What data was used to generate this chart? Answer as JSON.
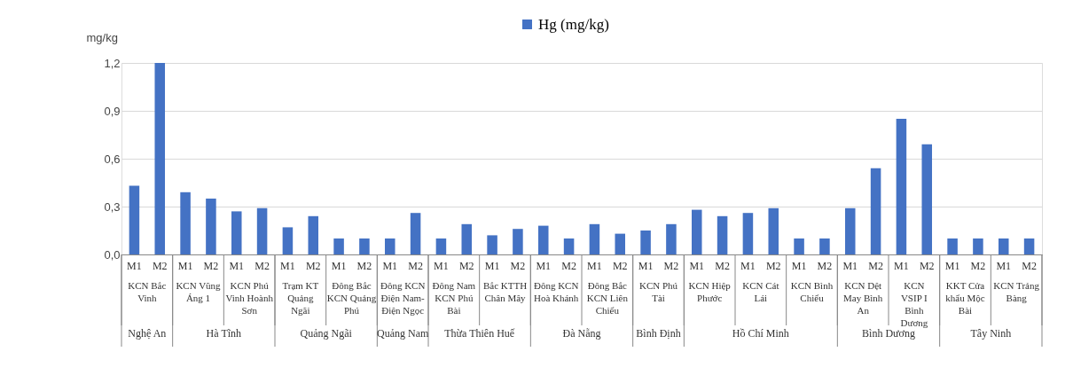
{
  "chart_data": {
    "type": "bar",
    "ylabel": "mg/kg",
    "legend": "top",
    "grid": "y",
    "categories": [
      "M1",
      "M2",
      "M1",
      "M2",
      "M1",
      "M2",
      "M1",
      "M2",
      "M1",
      "M2",
      "M1",
      "M2",
      "M1",
      "M2",
      "M1",
      "M2",
      "M1",
      "M2",
      "M1",
      "M2",
      "M1",
      "M2",
      "M1",
      "M2",
      "M1",
      "M2",
      "M1",
      "M2",
      "M1",
      "M2",
      "M1",
      "M2",
      "M1",
      "M2",
      "M1",
      "M2"
    ],
    "series": [
      {
        "name": "Hg (mg/kg)",
        "color": "#4472c4",
        "values": [
          0.43,
          1.2,
          0.39,
          0.35,
          0.27,
          0.29,
          0.17,
          0.24,
          0.1,
          0.1,
          0.1,
          0.26,
          0.1,
          0.19,
          0.12,
          0.16,
          0.18,
          0.1,
          0.19,
          0.13,
          0.15,
          0.19,
          0.28,
          0.24,
          0.26,
          0.29,
          0.1,
          0.1,
          0.29,
          0.54,
          0.85,
          0.69,
          0.1,
          0.1,
          0.1,
          0.1
        ]
      }
    ],
    "ylim": [
      0,
      1.2
    ],
    "yticks": [
      {
        "value": 0,
        "label": "0,0"
      },
      {
        "value": 0.3,
        "label": "0,3"
      },
      {
        "value": 0.6,
        "label": "0,6"
      },
      {
        "value": 0.9,
        "label": "0,9"
      },
      {
        "value": 1.2,
        "label": "1,2"
      }
    ],
    "annotations": [
      "KCN Bắc Vinh",
      "KCN Vũng Áng 1",
      "KCN Phú Vinh Hoành Sơn",
      "Trạm KT Quảng Ngãi",
      "Đông Bắc KCN Quảng Phú",
      "Đông KCN Điện Nam-Điện Ngọc",
      "Đông Nam KCN Phú Bài",
      "Bắc KTTH Chân Mây",
      "Đông KCN Hoà Khánh",
      "Đông Bắc KCN Liên Chiểu",
      "KCN Phú Tài",
      "KCN Hiệp Phước",
      "KCN Cát Lái",
      "KCN Bình Chiểu",
      "KCN Dệt May Bình An",
      "KCN VSIP I Bình Dương",
      "KKT Cửa khẩu Mộc Bài",
      "KCN Trảng Bàng",
      "Nghệ An",
      "Hà Tĩnh",
      "Quảng Ngãi",
      "Quảng Nam",
      "Thừa Thiên Huế",
      "Đà Nẵng",
      "Bình Định",
      "Hồ Chí Minh",
      "Bình Dương",
      "Tây Ninh"
    ]
  }
}
